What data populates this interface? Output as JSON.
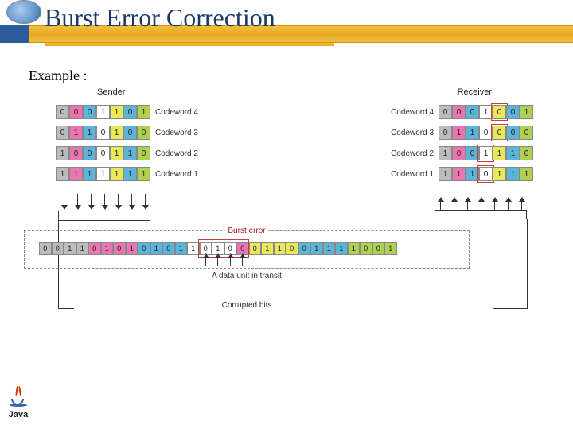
{
  "title": {
    "text": "Burst Error Correction",
    "fontsize": 32,
    "underline_width": 364
  },
  "example_label": "Example :",
  "example_fontsize": 18,
  "colors": {
    "grey": "#bcbcbc",
    "pink": "#e976b0",
    "blue": "#5bb5d8",
    "yellow": "#e8e85a",
    "green": "#b0d050",
    "white": "#ffffff",
    "border": "#888888",
    "text": "#222222",
    "error_border": "#c04040",
    "header_gold": "#e8a820",
    "title_color": "#1a3a6a"
  },
  "sender": {
    "label": "Sender",
    "rows": [
      {
        "label": "Codeword 4",
        "bits": [
          "0",
          "0",
          "0",
          "1",
          "1",
          "0",
          "1"
        ]
      },
      {
        "label": "Codeword 3",
        "bits": [
          "0",
          "1",
          "1",
          "0",
          "1",
          "0",
          "0"
        ]
      },
      {
        "label": "Codeword 2",
        "bits": [
          "1",
          "0",
          "0",
          "0",
          "1",
          "1",
          "0"
        ]
      },
      {
        "label": "Codeword 1",
        "bits": [
          "1",
          "1",
          "1",
          "1",
          "1",
          "1",
          "1"
        ]
      }
    ],
    "col_colors": [
      "grey",
      "pink",
      "blue",
      "white",
      "yellow",
      "blue",
      "green"
    ]
  },
  "receiver": {
    "label": "Receiver",
    "rows": [
      {
        "label": "Codeword 4",
        "bits": [
          "0",
          "0",
          "0",
          "1",
          "0",
          "0",
          "1"
        ],
        "err": [
          4
        ]
      },
      {
        "label": "Codeword 3",
        "bits": [
          "0",
          "1",
          "1",
          "0",
          "0",
          "0",
          "0"
        ],
        "err": [
          4
        ]
      },
      {
        "label": "Codeword 2",
        "bits": [
          "1",
          "0",
          "0",
          "1",
          "1",
          "1",
          "0"
        ],
        "err": [
          3
        ]
      },
      {
        "label": "Codeword 1",
        "bits": [
          "1",
          "1",
          "1",
          "0",
          "1",
          "1",
          "1"
        ],
        "err": [
          3
        ]
      }
    ],
    "col_colors": [
      "grey",
      "pink",
      "blue",
      "white",
      "yellow",
      "blue",
      "green"
    ]
  },
  "transit": {
    "burst_label": "Burst error",
    "title": "A data unit in transit",
    "corrupted_label": "Corrupted bits",
    "bits": [
      "0",
      "0",
      "1",
      "1",
      "0",
      "1",
      "0",
      "1",
      "0",
      "1",
      "0",
      "1",
      "1",
      "0",
      "1",
      "0",
      "0",
      "0",
      "1",
      "1",
      "0",
      "0",
      "1",
      "1",
      "1",
      "1",
      "0",
      "0",
      "1"
    ],
    "colors": [
      "grey",
      "grey",
      "grey",
      "grey",
      "pink",
      "pink",
      "pink",
      "pink",
      "blue",
      "blue",
      "blue",
      "blue",
      "white",
      "white",
      "white",
      "white",
      "pink",
      "yellow",
      "yellow",
      "yellow",
      "yellow",
      "blue",
      "blue",
      "blue",
      "blue",
      "green",
      "green",
      "green",
      "green"
    ],
    "burst_range": [
      13,
      17
    ],
    "corrupted_arrows": [
      13,
      14,
      15,
      16
    ]
  },
  "java_label": "Java"
}
